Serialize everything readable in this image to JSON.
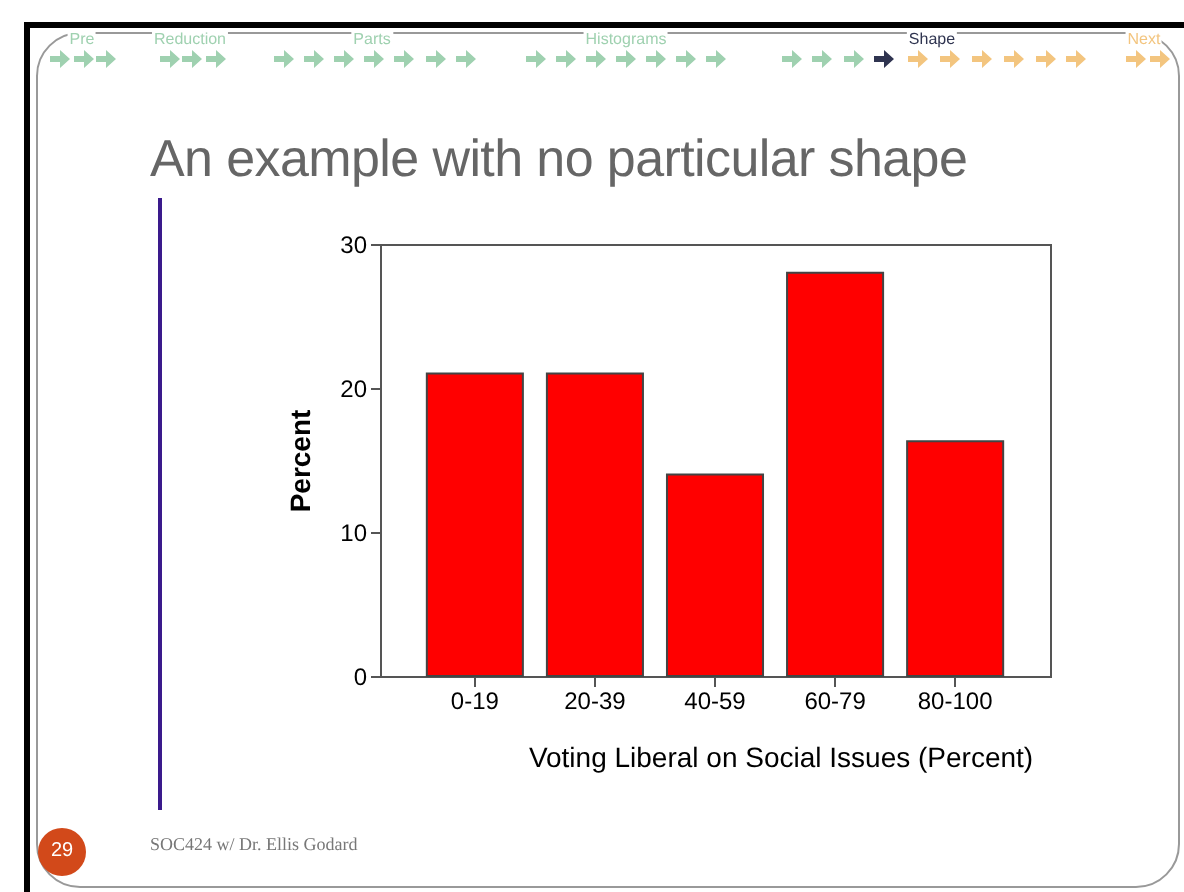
{
  "chart_data": {
    "type": "bar",
    "title": "An example with no particular shape",
    "xlabel": "Voting Liberal on Social Issues (Percent)",
    "ylabel": "Percent",
    "categories": [
      "0-19",
      "20-39",
      "40-59",
      "60-79",
      "80-100"
    ],
    "values": [
      21,
      21,
      14,
      28,
      16.3
    ],
    "color": "#ff0000",
    "ylim": [
      0,
      30
    ],
    "yticks": [
      0,
      10,
      20,
      30
    ],
    "grid": false,
    "annotations": [
      "Pre",
      "Reduction",
      "Parts",
      "Histograms",
      "Shape",
      "Next",
      "29",
      "SOC424 w/ Dr. Ellis Godard"
    ]
  }
}
